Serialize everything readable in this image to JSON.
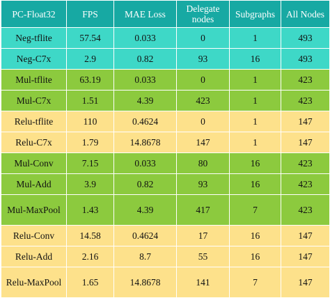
{
  "table": {
    "headers": [
      "PC-Float32",
      "FPS",
      "MAE Loss",
      "Delegate nodes",
      "Subgraphs",
      "All Nodes"
    ],
    "rows": [
      {
        "color": "teal",
        "cells": [
          "Neg-tflite",
          "57.54",
          "0.033",
          "0",
          "1",
          "493"
        ]
      },
      {
        "color": "teal",
        "cells": [
          "Neg-C7x",
          "2.9",
          "0.82",
          "93",
          "16",
          "493"
        ]
      },
      {
        "color": "green",
        "cells": [
          "Mul-tflite",
          "63.19",
          "0.033",
          "0",
          "1",
          "423"
        ]
      },
      {
        "color": "green",
        "cells": [
          "Mul-C7x",
          "1.51",
          "4.39",
          "423",
          "1",
          "423"
        ]
      },
      {
        "color": "yellow",
        "cells": [
          "Relu-tflite",
          "110",
          "0.4624",
          "0",
          "1",
          "147"
        ]
      },
      {
        "color": "yellow",
        "cells": [
          "Relu-C7x",
          "1.79",
          "14.8678",
          "147",
          "1",
          "147"
        ]
      },
      {
        "color": "green",
        "cells": [
          "Mul-Conv",
          "7.15",
          "0.033",
          "80",
          "16",
          "423"
        ]
      },
      {
        "color": "green",
        "cells": [
          "Mul-Add",
          "3.9",
          "0.82",
          "93",
          "16",
          "423"
        ]
      },
      {
        "color": "green",
        "cells": [
          "Mul-MaxPool",
          "1.43",
          "4.39",
          "417",
          "7",
          "423"
        ]
      },
      {
        "color": "yellow",
        "cells": [
          "Relu-Conv",
          "14.58",
          "0.4624",
          "17",
          "16",
          "147"
        ]
      },
      {
        "color": "yellow",
        "cells": [
          "Relu-Add",
          "2.16",
          "8.7",
          "55",
          "16",
          "147"
        ]
      },
      {
        "color": "yellow",
        "cells": [
          "Relu-MaxPool",
          "1.65",
          "14.8678",
          "141",
          "7",
          "147"
        ]
      }
    ]
  },
  "colors": {
    "header": "#17a9a3",
    "teal": "#3ed8c7",
    "green": "#8cca3e",
    "yellow": "#fde18b"
  }
}
